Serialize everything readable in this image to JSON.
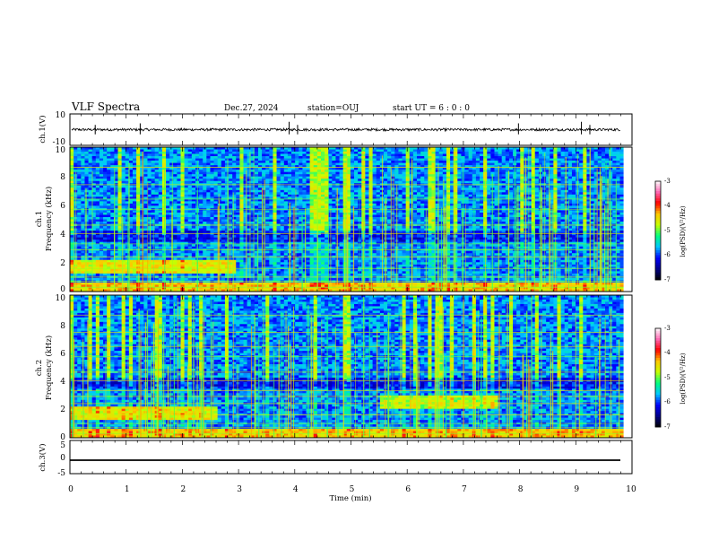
{
  "header": {
    "title": "VLF Spectra",
    "date": "Dec.27, 2024",
    "station": "station=OUJ",
    "start_ut": "start  UT =   6 : 0  : 0"
  },
  "chart_data": [
    {
      "type": "line",
      "name": "ch1-waveform",
      "ylabel": "ch.1(V)",
      "ylim": [
        -10,
        10
      ],
      "ytick_labels": [
        "10",
        "-10"
      ],
      "xlim": [
        0,
        10
      ],
      "baseline": 0,
      "spikes_at_min": [
        0.45,
        1.25,
        3.9,
        4.05,
        7.98,
        9.1,
        9.25
      ]
    },
    {
      "type": "heatmap",
      "name": "ch1-spectrogram",
      "ylabel_channel": "ch.1",
      "ylabel": "Frequency (kHz)",
      "xlim": [
        0,
        9.85
      ],
      "ylim": [
        0,
        10
      ],
      "ytick_labels": [
        "0",
        "2",
        "4",
        "6",
        "8",
        "10"
      ],
      "colorbar": {
        "label": "log(PSD)(V²/Hz)",
        "range": [
          -7,
          -3
        ],
        "tick_labels": [
          "-3",
          "-4",
          "-5",
          "-6",
          "-7"
        ],
        "colors": [
          "#000000",
          "#00008b",
          "#0000ff",
          "#00c8ff",
          "#00ff80",
          "#c8ff00",
          "#ffc800",
          "#ff0000",
          "#ff69b4",
          "#ffffff"
        ]
      }
    },
    {
      "type": "heatmap",
      "name": "ch2-spectrogram",
      "ylabel_channel": "ch.2",
      "ylabel": "Frequency (kHz)",
      "xlim": [
        0,
        9.85
      ],
      "ylim": [
        0,
        10
      ],
      "ytick_labels": [
        "0",
        "2",
        "4",
        "6",
        "8",
        "10"
      ],
      "colorbar": {
        "label": "log(PSD)(V²/Hz)",
        "range": [
          -7,
          -3
        ],
        "tick_labels": [
          "-3",
          "-4",
          "-5",
          "-6",
          "-7"
        ]
      }
    },
    {
      "type": "line",
      "name": "ch3-waveform",
      "ylabel": "ch.3(V)",
      "ylim": [
        -5,
        5
      ],
      "ytick_labels": [
        "5",
        "0",
        "-5"
      ],
      "xlim": [
        0,
        10
      ],
      "baseline": -1.5
    }
  ],
  "x_axis": {
    "label": "Time (min)",
    "tick_labels": [
      "0",
      "1",
      "2",
      "3",
      "4",
      "5",
      "6",
      "7",
      "8",
      "9",
      "10"
    ]
  }
}
